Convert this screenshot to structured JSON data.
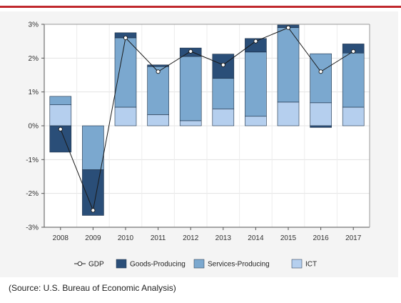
{
  "colors": {
    "accent_rule": "#c0282d",
    "gdp": "#1a1a1a",
    "goods_producing": "#2a4e78",
    "services_producing": "#7ba8cf",
    "ict": "#b5cfee"
  },
  "source_text": "(Source: U.S. Bureau of Economic Analysis)",
  "chart_data": {
    "type": "bar",
    "stacked": true,
    "categories": [
      "2008",
      "2009",
      "2010",
      "2011",
      "2012",
      "2013",
      "2014",
      "2015",
      "2016",
      "2017"
    ],
    "ylim": [
      -3,
      3
    ],
    "yticks": [
      -3,
      -2,
      -1,
      0,
      1,
      2,
      3
    ],
    "ytick_labels": [
      "-3%",
      "-2%",
      "-1%",
      "0%",
      "1%",
      "2%",
      "3%"
    ],
    "grid": true,
    "legend_position": "bottom",
    "series": [
      {
        "name": "ICT",
        "kind": "bar",
        "color": "#b5cfee",
        "values": [
          0.62,
          0.0,
          0.55,
          0.33,
          0.15,
          0.5,
          0.28,
          0.7,
          0.68,
          0.55
        ]
      },
      {
        "name": "Services-Producing",
        "kind": "bar",
        "color": "#7ba8cf",
        "values": [
          0.25,
          -1.3,
          2.05,
          1.42,
          1.9,
          0.9,
          1.9,
          2.2,
          1.45,
          1.6
        ]
      },
      {
        "name": "Goods-Producing",
        "kind": "bar",
        "color": "#2a4e78",
        "values": [
          -0.78,
          -1.35,
          0.15,
          0.05,
          0.25,
          0.72,
          0.4,
          0.08,
          -0.05,
          0.27
        ]
      },
      {
        "name": "GDP",
        "kind": "line",
        "color": "#1a1a1a",
        "values": [
          -0.1,
          -2.5,
          2.6,
          1.6,
          2.2,
          1.8,
          2.5,
          2.9,
          1.6,
          2.2
        ]
      }
    ],
    "legend": [
      "GDP",
      "Goods-Producing",
      "Services-Producing",
      "ICT"
    ]
  }
}
